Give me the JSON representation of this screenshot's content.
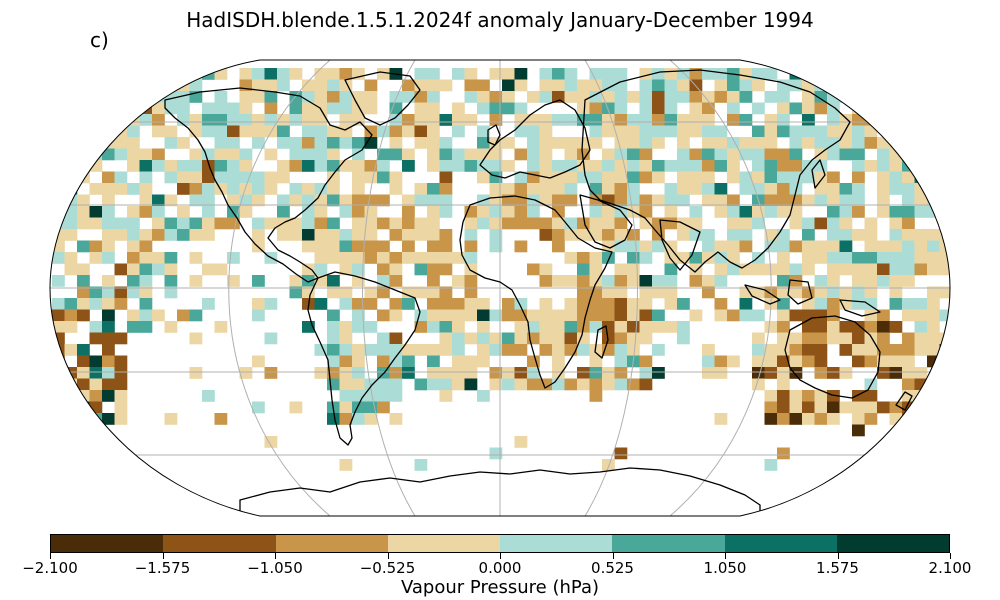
{
  "title": "HadISDH.blende.1.5.1.2024f anomaly January-December 1994",
  "panel_label": "c)",
  "colorbar": {
    "label": "Vapour Pressure (hPa)",
    "ticks": [
      "−2.100",
      "−1.575",
      "−1.050",
      "−0.525",
      "0.000",
      "0.525",
      "1.050",
      "1.575",
      "2.100"
    ],
    "colors": [
      "#4a2c09",
      "#8e5316",
      "#c99548",
      "#ecd6a4",
      "#abddd6",
      "#4aa89b",
      "#0c7064",
      "#023b30"
    ]
  },
  "map": {
    "projection": "Robinson",
    "grid": true,
    "coastlines": true,
    "land_color": "#ffffff",
    "gridline_color": "#b0b0b0"
  }
}
